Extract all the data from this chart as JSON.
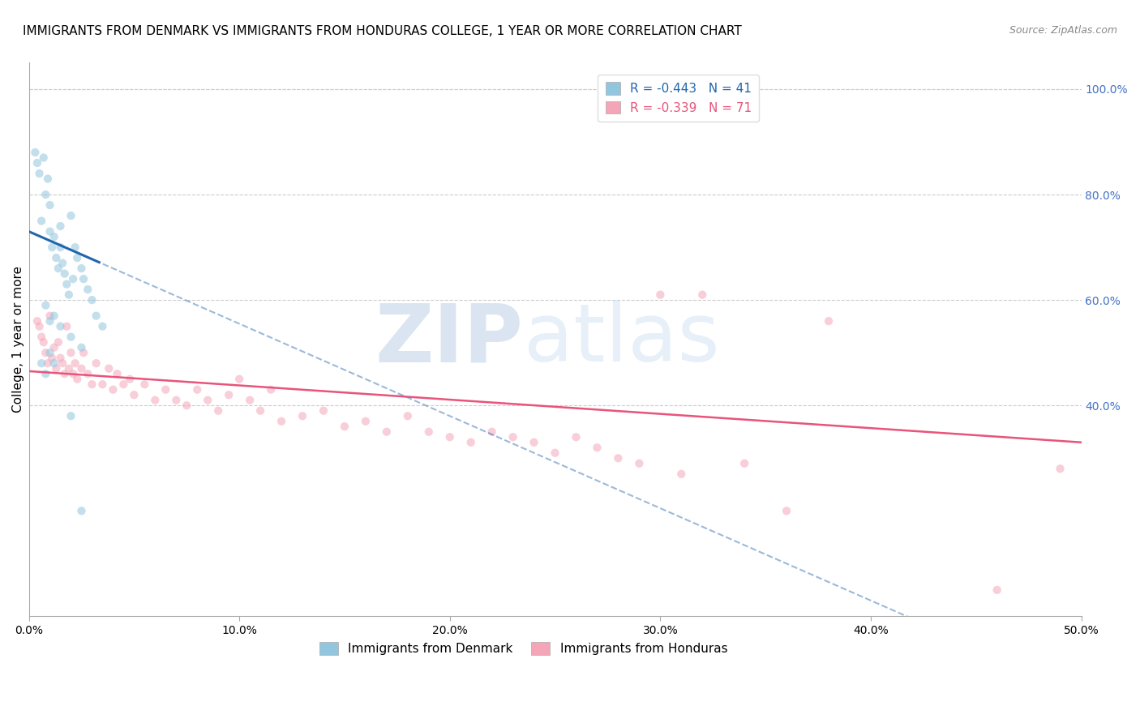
{
  "title": "IMMIGRANTS FROM DENMARK VS IMMIGRANTS FROM HONDURAS COLLEGE, 1 YEAR OR MORE CORRELATION CHART",
  "source": "Source: ZipAtlas.com",
  "ylabel": "College, 1 year or more",
  "xlim": [
    0.0,
    0.5
  ],
  "ylim": [
    0.0,
    1.05
  ],
  "xtick_labels": [
    "0.0%",
    "10.0%",
    "20.0%",
    "30.0%",
    "40.0%",
    "50.0%"
  ],
  "xtick_values": [
    0.0,
    0.1,
    0.2,
    0.3,
    0.4,
    0.5
  ],
  "ytick_labels_right": [
    "100.0%",
    "80.0%",
    "60.0%",
    "40.0%"
  ],
  "ytick_values_right": [
    1.0,
    0.8,
    0.6,
    0.4
  ],
  "denmark_color": "#92c5de",
  "honduras_color": "#f4a6b8",
  "denmark_line_color": "#2166ac",
  "honduras_line_color": "#e8547a",
  "legend_denmark_R": "-0.443",
  "legend_denmark_N": "41",
  "legend_honduras_R": "-0.339",
  "legend_honduras_N": "71",
  "denmark_scatter_x": [
    0.003,
    0.004,
    0.005,
    0.006,
    0.007,
    0.008,
    0.009,
    0.01,
    0.01,
    0.011,
    0.012,
    0.013,
    0.014,
    0.015,
    0.015,
    0.016,
    0.017,
    0.018,
    0.019,
    0.02,
    0.021,
    0.022,
    0.023,
    0.025,
    0.026,
    0.028,
    0.03,
    0.032,
    0.035,
    0.008,
    0.01,
    0.012,
    0.015,
    0.02,
    0.025,
    0.006,
    0.008,
    0.01,
    0.012,
    0.02,
    0.025
  ],
  "denmark_scatter_y": [
    0.88,
    0.86,
    0.84,
    0.75,
    0.87,
    0.8,
    0.83,
    0.73,
    0.78,
    0.7,
    0.72,
    0.68,
    0.66,
    0.74,
    0.7,
    0.67,
    0.65,
    0.63,
    0.61,
    0.76,
    0.64,
    0.7,
    0.68,
    0.66,
    0.64,
    0.62,
    0.6,
    0.57,
    0.55,
    0.59,
    0.56,
    0.57,
    0.55,
    0.53,
    0.51,
    0.48,
    0.46,
    0.5,
    0.48,
    0.38,
    0.2
  ],
  "honduras_scatter_x": [
    0.004,
    0.005,
    0.006,
    0.007,
    0.008,
    0.009,
    0.01,
    0.011,
    0.012,
    0.013,
    0.014,
    0.015,
    0.016,
    0.017,
    0.018,
    0.019,
    0.02,
    0.021,
    0.022,
    0.023,
    0.025,
    0.026,
    0.028,
    0.03,
    0.032,
    0.035,
    0.038,
    0.04,
    0.042,
    0.045,
    0.048,
    0.05,
    0.055,
    0.06,
    0.065,
    0.07,
    0.075,
    0.08,
    0.085,
    0.09,
    0.095,
    0.1,
    0.105,
    0.11,
    0.115,
    0.12,
    0.13,
    0.14,
    0.15,
    0.16,
    0.17,
    0.18,
    0.19,
    0.2,
    0.21,
    0.22,
    0.23,
    0.24,
    0.25,
    0.26,
    0.27,
    0.28,
    0.29,
    0.3,
    0.31,
    0.32,
    0.34,
    0.36,
    0.38,
    0.46,
    0.49
  ],
  "honduras_scatter_y": [
    0.56,
    0.55,
    0.53,
    0.52,
    0.5,
    0.48,
    0.57,
    0.49,
    0.51,
    0.47,
    0.52,
    0.49,
    0.48,
    0.46,
    0.55,
    0.47,
    0.5,
    0.46,
    0.48,
    0.45,
    0.47,
    0.5,
    0.46,
    0.44,
    0.48,
    0.44,
    0.47,
    0.43,
    0.46,
    0.44,
    0.45,
    0.42,
    0.44,
    0.41,
    0.43,
    0.41,
    0.4,
    0.43,
    0.41,
    0.39,
    0.42,
    0.45,
    0.41,
    0.39,
    0.43,
    0.37,
    0.38,
    0.39,
    0.36,
    0.37,
    0.35,
    0.38,
    0.35,
    0.34,
    0.33,
    0.35,
    0.34,
    0.33,
    0.31,
    0.34,
    0.32,
    0.3,
    0.29,
    0.61,
    0.27,
    0.61,
    0.29,
    0.2,
    0.56,
    0.05,
    0.28
  ],
  "watermark_zip": "ZIP",
  "watermark_atlas": "atlas",
  "background_color": "#ffffff",
  "grid_color": "#cccccc",
  "title_fontsize": 11,
  "axis_label_fontsize": 11,
  "tick_fontsize": 10,
  "legend_fontsize": 11,
  "scatter_size": 55,
  "scatter_alpha": 0.55,
  "denmark_line_intercept": 0.73,
  "denmark_line_slope": -1.75,
  "honduras_line_intercept": 0.465,
  "honduras_line_slope": -0.27
}
